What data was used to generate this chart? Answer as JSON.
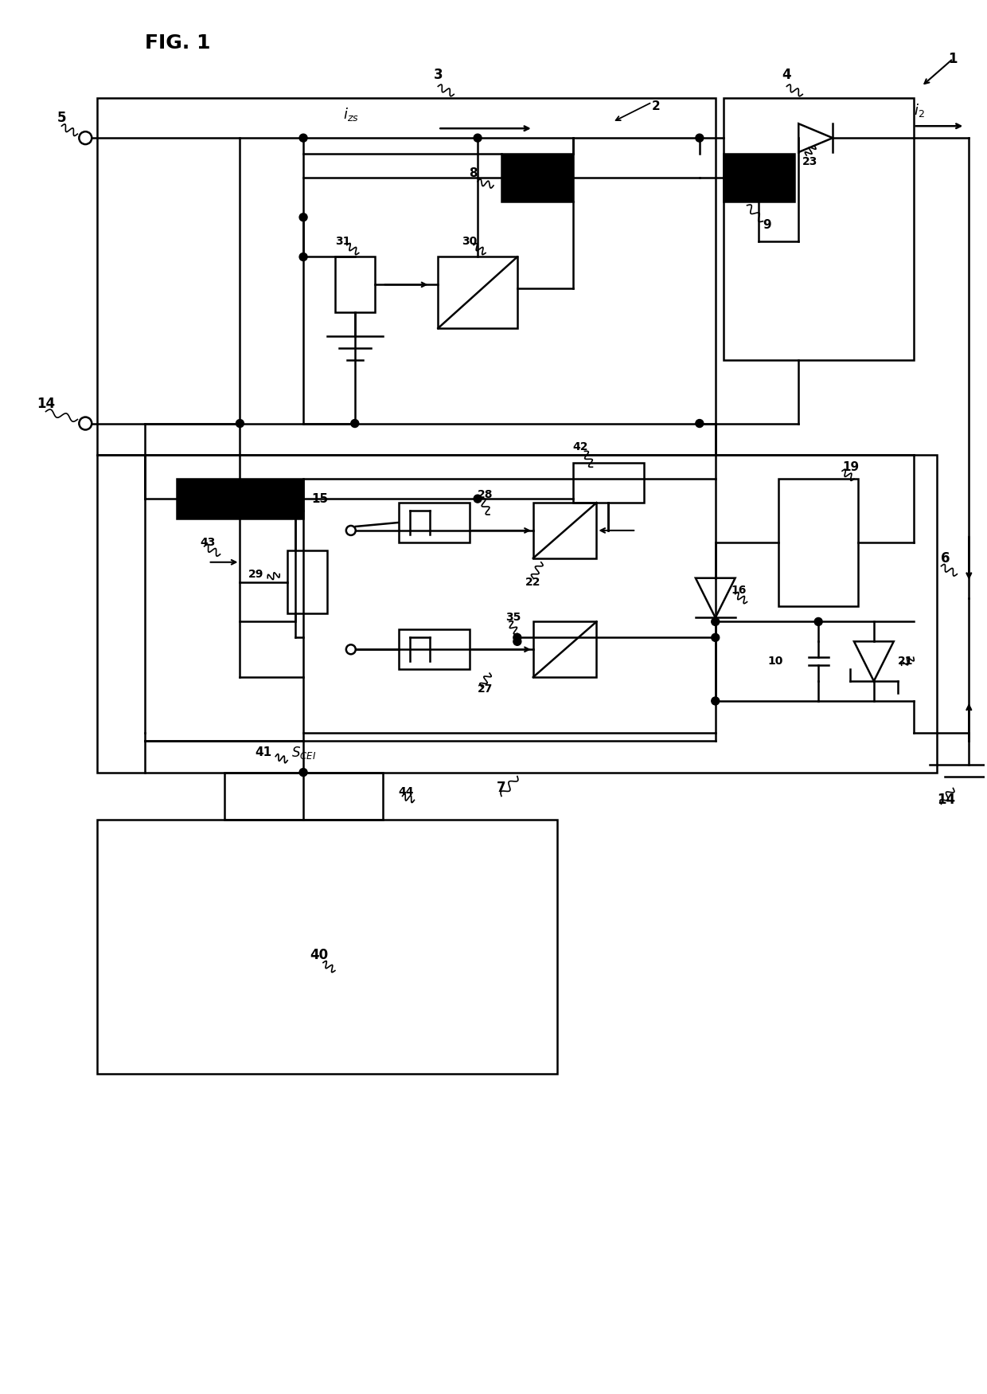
{
  "title": "FIG. 1",
  "background": "#ffffff",
  "fig_width": 12.4,
  "fig_height": 17.5,
  "dpi": 100
}
